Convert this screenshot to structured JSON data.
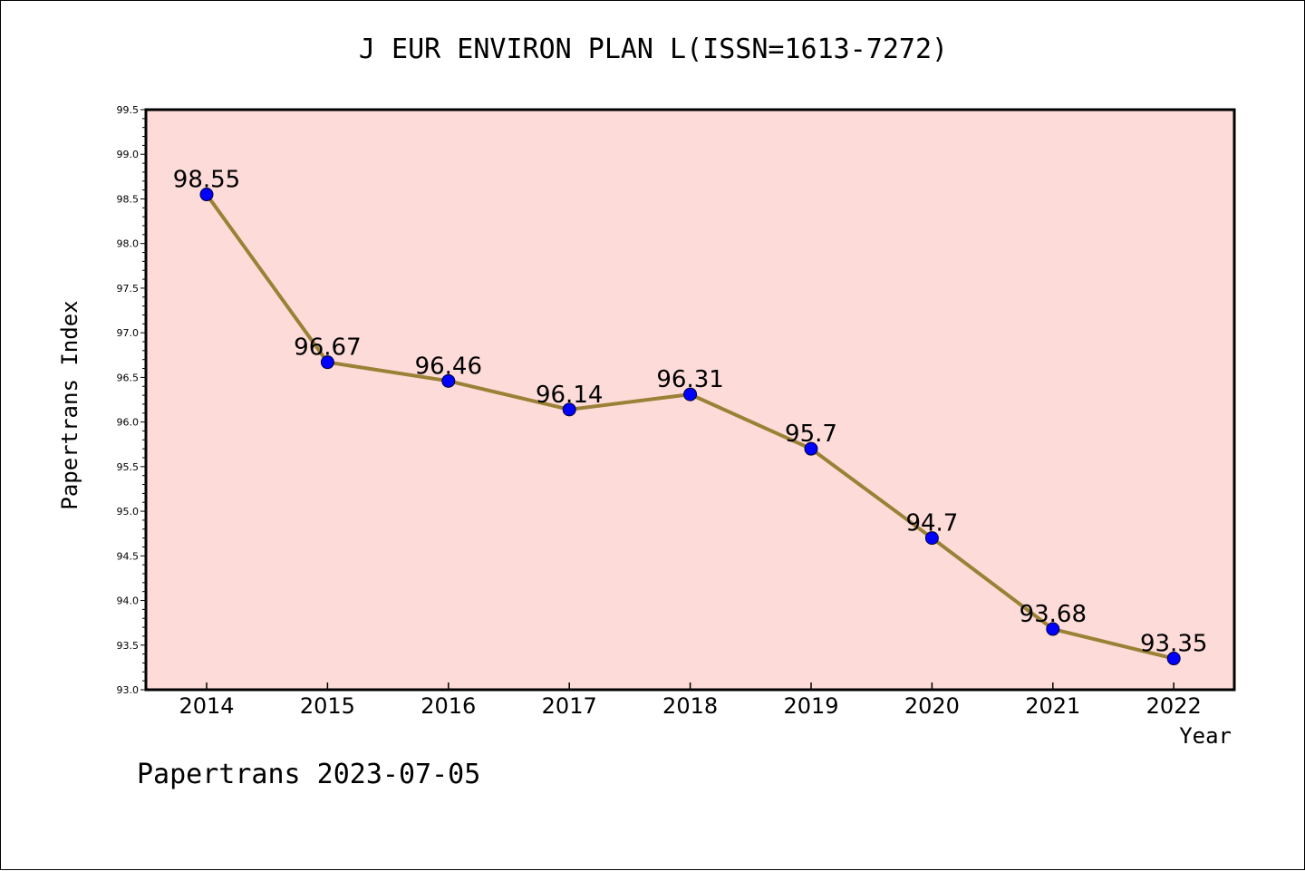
{
  "chart_data": {
    "type": "line",
    "title": "J EUR ENVIRON PLAN L(ISSN=1613-7272)",
    "xlabel": "Year",
    "ylabel": "Papertrans Index",
    "categories": [
      "2014",
      "2015",
      "2016",
      "2017",
      "2018",
      "2019",
      "2020",
      "2021",
      "2022"
    ],
    "values": [
      98.55,
      96.67,
      96.46,
      96.14,
      96.31,
      95.7,
      94.7,
      93.68,
      93.35
    ],
    "data_labels": [
      "98.55",
      "96.67",
      "96.46",
      "96.14",
      "96.31",
      "95.7",
      "94.7",
      "93.68",
      "93.35"
    ],
    "ylim": [
      93.0,
      99.5
    ],
    "yticks": [
      "93.0",
      "93.5",
      "94.0",
      "94.5",
      "95.0",
      "95.5",
      "96.0",
      "96.5",
      "97.0",
      "97.5",
      "98.0",
      "98.5",
      "99.0",
      "99.5"
    ],
    "grid": false,
    "colors": {
      "plot_background": "#fddbd8",
      "line": "#9a8136",
      "marker": "#0000ff"
    }
  },
  "footer": "Papertrans 2023-07-05"
}
